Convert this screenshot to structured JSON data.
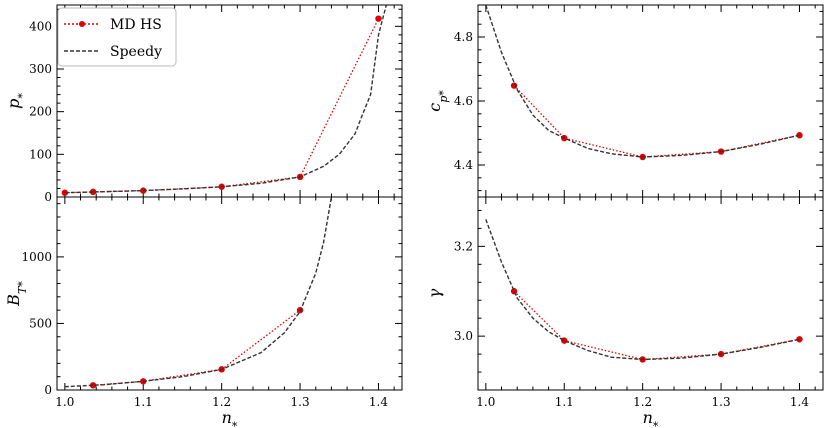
{
  "legend": {
    "position": "upper-left",
    "items": [
      {
        "label": "MD HS",
        "color": "#e00000",
        "style": "dotted-marker"
      },
      {
        "label": "Speedy",
        "color": "#333333",
        "style": "dashed"
      }
    ]
  },
  "chart_data": [
    {
      "type": "line",
      "panel": "top-left",
      "ylabel": "p_*",
      "xlabel": "",
      "xlim": [
        0.99,
        1.43
      ],
      "ylim": [
        0,
        450
      ],
      "xticks": [
        1.0,
        1.1,
        1.2,
        1.3,
        1.4
      ],
      "yticks": [
        0,
        100,
        200,
        300,
        400
      ],
      "xtick_labels_visible": false,
      "series": [
        {
          "name": "MD HS",
          "x": [
            1.0,
            1.036,
            1.1,
            1.2,
            1.3,
            1.4
          ],
          "y": [
            10,
            12,
            15,
            24,
            47,
            418
          ]
        },
        {
          "name": "Speedy",
          "x": [
            1.0,
            1.05,
            1.1,
            1.15,
            1.2,
            1.25,
            1.3,
            1.33,
            1.35,
            1.37,
            1.38,
            1.39,
            1.4,
            1.41
          ],
          "y": [
            10,
            12.5,
            15,
            19,
            24,
            32,
            47,
            72,
            100,
            148,
            195,
            240,
            380,
            450
          ]
        }
      ]
    },
    {
      "type": "line",
      "panel": "top-right",
      "ylabel": "c_p*",
      "xlabel": "",
      "xlim": [
        0.99,
        1.43
      ],
      "ylim": [
        4.3,
        4.9
      ],
      "xticks": [
        1.0,
        1.1,
        1.2,
        1.3,
        1.4
      ],
      "yticks": [
        4.4,
        4.6,
        4.8
      ],
      "xtick_labels_visible": false,
      "series": [
        {
          "name": "MD HS",
          "x": [
            1.036,
            1.1,
            1.2,
            1.3,
            1.4
          ],
          "y": [
            4.648,
            4.484,
            4.425,
            4.442,
            4.493
          ]
        },
        {
          "name": "Speedy",
          "x": [
            1.0,
            1.02,
            1.04,
            1.06,
            1.08,
            1.1,
            1.13,
            1.16,
            1.2,
            1.25,
            1.3,
            1.35,
            1.4
          ],
          "y": [
            4.9,
            4.752,
            4.635,
            4.556,
            4.508,
            4.484,
            4.452,
            4.435,
            4.425,
            4.43,
            4.442,
            4.465,
            4.493
          ]
        }
      ]
    },
    {
      "type": "line",
      "panel": "bottom-left",
      "ylabel": "B_T*",
      "xlabel": "n_*",
      "xlim": [
        0.99,
        1.43
      ],
      "ylim": [
        0,
        1450
      ],
      "xticks": [
        1.0,
        1.1,
        1.2,
        1.3,
        1.4
      ],
      "xtick_labels": [
        "1.0",
        "1.1",
        "1.2",
        "1.3",
        "1.4"
      ],
      "yticks": [
        0,
        500,
        1000
      ],
      "series": [
        {
          "name": "MD HS",
          "x": [
            1.036,
            1.1,
            1.2,
            1.3
          ],
          "y": [
            35,
            65,
            155,
            600
          ]
        },
        {
          "name": "Speedy",
          "x": [
            1.0,
            1.05,
            1.1,
            1.15,
            1.2,
            1.25,
            1.28,
            1.3,
            1.32,
            1.33,
            1.34
          ],
          "y": [
            25,
            40,
            65,
            100,
            155,
            280,
            430,
            590,
            880,
            1110,
            1450
          ]
        }
      ]
    },
    {
      "type": "line",
      "panel": "bottom-right",
      "ylabel": "γ",
      "xlabel": "n_*",
      "xlim": [
        0.99,
        1.43
      ],
      "ylim": [
        2.88,
        3.31
      ],
      "xticks": [
        1.0,
        1.1,
        1.2,
        1.3,
        1.4
      ],
      "xtick_labels": [
        "1.0",
        "1.1",
        "1.2",
        "1.3",
        "1.4"
      ],
      "yticks": [
        3.0,
        3.2
      ],
      "series": [
        {
          "name": "MD HS",
          "x": [
            1.036,
            1.1,
            1.2,
            1.3,
            1.4
          ],
          "y": [
            3.1,
            2.99,
            2.948,
            2.96,
            2.993
          ]
        },
        {
          "name": "Speedy",
          "x": [
            1.0,
            1.02,
            1.04,
            1.06,
            1.08,
            1.1,
            1.13,
            1.16,
            1.2,
            1.25,
            1.3,
            1.35,
            1.4
          ],
          "y": [
            3.26,
            3.165,
            3.085,
            3.04,
            3.01,
            2.99,
            2.968,
            2.953,
            2.948,
            2.951,
            2.96,
            2.975,
            2.993
          ]
        }
      ]
    }
  ]
}
